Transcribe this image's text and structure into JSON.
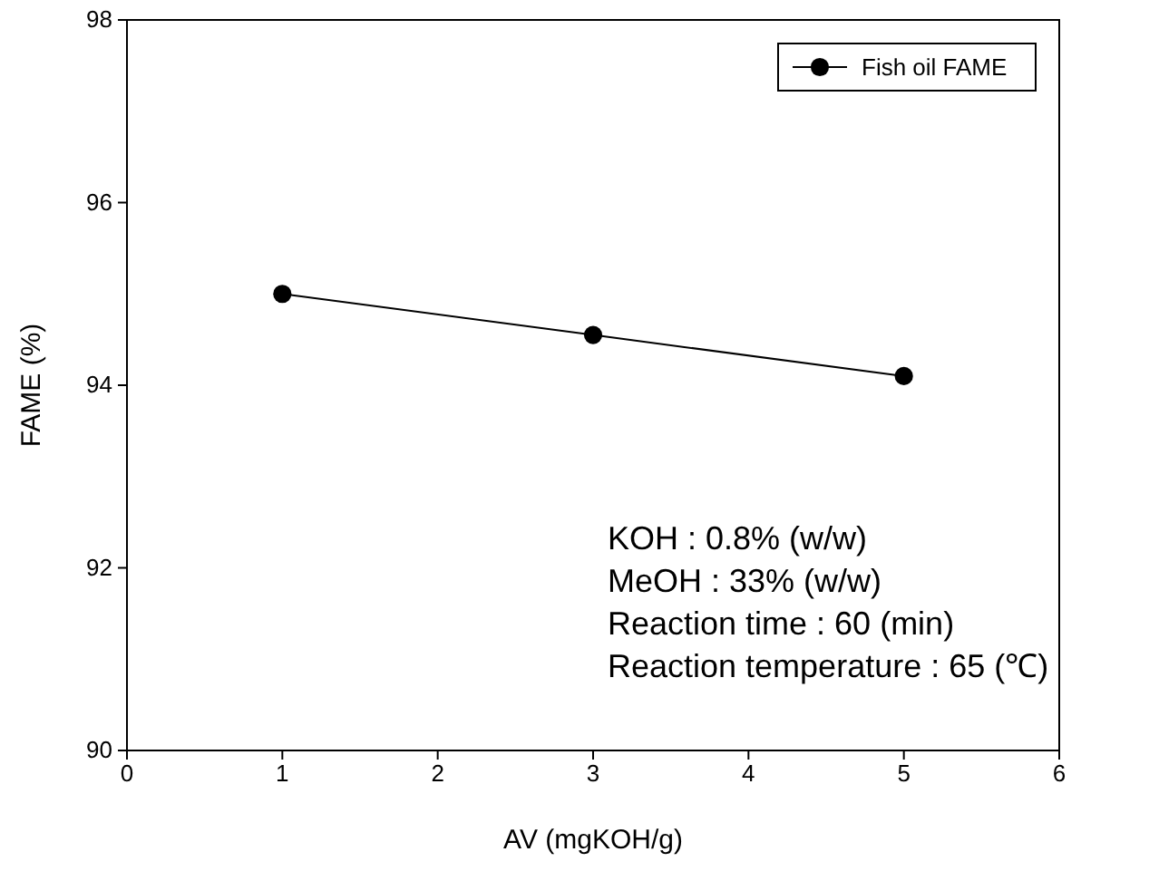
{
  "chart_data": {
    "type": "line",
    "xlabel": "AV  (mgKOH/g)",
    "ylabel": "FAME  (%)",
    "x": [
      1,
      3,
      5
    ],
    "series": [
      {
        "name": "Fish oil FAME",
        "color": "#000000",
        "values": [
          95.0,
          94.55,
          94.1
        ]
      }
    ],
    "xlim": [
      0,
      6
    ],
    "xticks": [
      0,
      1,
      2,
      3,
      4,
      5,
      6
    ],
    "ylim": [
      90,
      98
    ],
    "yticks": [
      90,
      92,
      94,
      96,
      98
    ],
    "grid": false,
    "legend": "top right",
    "marker": "circle",
    "line_style": "solid",
    "annotations": [
      "KOH : 0.8% (w/w)",
      "MeOH : 33% (w/w)",
      "Reaction time : 60 (min)",
      "Reaction temperature : 65 (℃)"
    ]
  }
}
